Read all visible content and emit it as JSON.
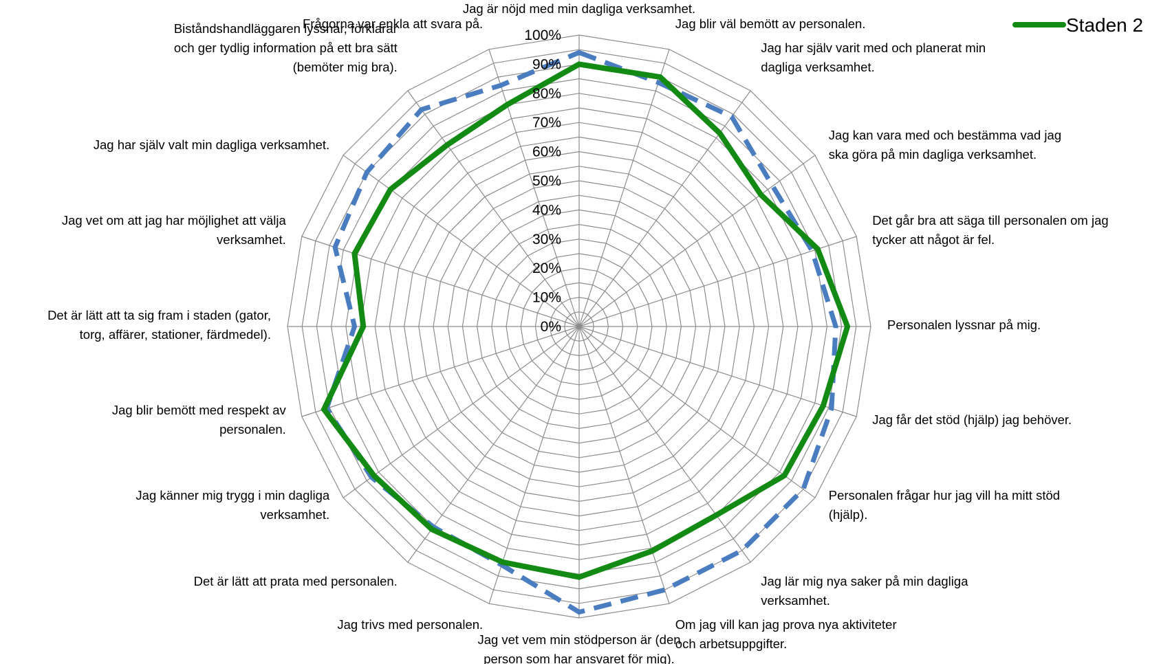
{
  "chart_data": {
    "type": "radar",
    "categories": [
      "Jag är nöjd med min dagliga verksamhet.",
      "Jag blir väl bemött av personalen.",
      "Jag har själv varit med och planerat min dagliga verksamhet.",
      "Jag kan vara med och bestämma vad jag ska göra på min dagliga verksamhet.",
      "Det går bra att säga till personalen om jag tycker att något är fel.",
      "Personalen lyssnar på mig.",
      "Jag får det stöd (hjälp) jag behöver.",
      "Personalen frågar hur jag vill ha mitt stöd (hjälp).",
      "Jag lär mig nya saker på min dagliga verksamhet.",
      "Om jag vill kan jag prova nya aktiviteter och arbetsuppgifter.",
      "Jag vet vem min stödperson är (den person som har ansvaret för mig).",
      "Jag trivs med personalen.",
      "Det är lätt att prata med personalen.",
      "Jag känner mig trygg i min dagliga verksamhet.",
      "Jag blir bemött med respekt av personalen.",
      "Det är lätt att ta sig fram i staden (gator, torg, affärer, stationer, färdmedel).",
      "Jag vet om att jag har möjlighet att välja verksamhet.",
      "Jag har själv valt min dagliga verksamhet.",
      "Biståndshandläggaren lyssnar, förklarar och ger tydlig information på ett bra sätt (bemöter mig bra).",
      "Frågorna var enkla att svara på."
    ],
    "category_label_lines": [
      [
        "Jag är nöjd med min dagliga verksamhet."
      ],
      [
        "Jag blir väl bemött av personalen."
      ],
      [
        "Jag har själv varit med och planerat min",
        "dagliga verksamhet."
      ],
      [
        "Jag kan vara med och bestämma vad jag",
        "ska göra på min dagliga verksamhet."
      ],
      [
        "Det går bra att säga till personalen om jag",
        "tycker att något är fel."
      ],
      [
        "Personalen lyssnar på mig."
      ],
      [
        "Jag får det stöd (hjälp) jag behöver."
      ],
      [
        "Personalen frågar hur jag vill ha mitt stöd",
        "(hjälp)."
      ],
      [
        "Jag lär mig nya saker på min dagliga",
        "verksamhet."
      ],
      [
        "Om jag vill kan jag prova nya aktiviteter",
        "och arbetsuppgifter."
      ],
      [
        "Jag vet vem min stödperson är (den",
        "person som har ansvaret för mig)."
      ],
      [
        "Jag trivs med personalen."
      ],
      [
        "Det är lätt att prata med personalen."
      ],
      [
        "Jag känner mig trygg i min dagliga",
        "verksamhet."
      ],
      [
        "Jag blir bemött med respekt av",
        "personalen."
      ],
      [
        "Det är lätt att ta sig fram i staden (gator,",
        "torg, affärer, stationer, färdmedel)."
      ],
      [
        "Jag vet om att jag har möjlighet att välja",
        "verksamhet."
      ],
      [
        "Jag har själv valt min dagliga verksamhet."
      ],
      [
        "Biståndshandläggaren lyssnar, förklarar",
        "och ger tydlig information på ett bra sätt",
        "(bemöter mig bra)."
      ],
      [
        "Frågorna var enkla att svara på."
      ]
    ],
    "r_ticks": [
      "0%",
      "10%",
      "20%",
      "30%",
      "40%",
      "50%",
      "60%",
      "70%",
      "80%",
      "90%",
      "100%"
    ],
    "rlim": [
      0,
      100
    ],
    "grid": true,
    "legend_position": "top-right",
    "series": [
      {
        "name": "Staden 2",
        "color": "#138a13",
        "style": "solid",
        "values": [
          90,
          90,
          82,
          77,
          86,
          92,
          88,
          87,
          80,
          81,
          86,
          85,
          86,
          87,
          92,
          74,
          81,
          80,
          77,
          80
        ]
      },
      {
        "name": "",
        "color": "#4a7cc0",
        "style": "dashed",
        "values": [
          94,
          88,
          89,
          82,
          84,
          88,
          91,
          95,
          95,
          95,
          98,
          86,
          85,
          88,
          91,
          77,
          88,
          90,
          92,
          87
        ]
      }
    ]
  }
}
